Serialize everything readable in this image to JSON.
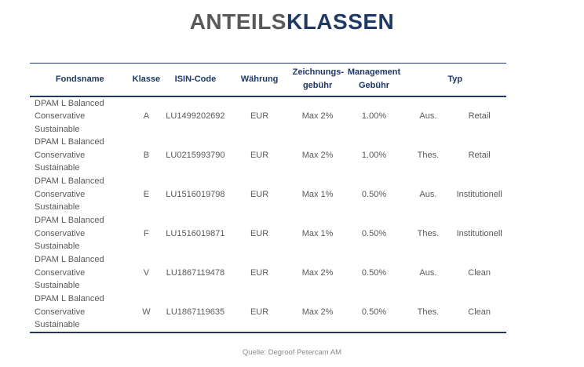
{
  "page": {
    "title_light": "ANTEILS",
    "title_bold": "KLASSEN",
    "source": "Quelle: Degroof Petercam AM"
  },
  "table": {
    "headers": {
      "fondsname": "Fondsname",
      "klasse": "Klasse",
      "isin": "ISIN-Code",
      "waehrung": "Währung",
      "zeichnung_line1": "Zeichnungs-",
      "zeichnung_line2": "gebühr",
      "management_line1": "Management",
      "management_line2": "Gebühr",
      "typ": "Typ"
    },
    "rows": [
      {
        "name1": "DPAM L Balanced",
        "name2": "Conservative Sustainable",
        "klasse": "A",
        "isin": "LU1499202692",
        "waehrung": "EUR",
        "zeichnungsgebuehr": "Max 2%",
        "management_gebuehr": "1.00%",
        "ausschuettung": "Aus.",
        "typ": "Retail"
      },
      {
        "name1": "DPAM L Balanced",
        "name2": "Conservative Sustainable",
        "klasse": "B",
        "isin": "LU0215993790",
        "waehrung": "EUR",
        "zeichnungsgebuehr": "Max 2%",
        "management_gebuehr": "1.00%",
        "ausschuettung": "Thes.",
        "typ": "Retail"
      },
      {
        "name1": "DPAM L Balanced",
        "name2": "Conservative Sustainable",
        "klasse": "E",
        "isin": "LU1516019798",
        "waehrung": "EUR",
        "zeichnungsgebuehr": "Max 1%",
        "management_gebuehr": "0.50%",
        "ausschuettung": "Aus.",
        "typ": "Institutionell"
      },
      {
        "name1": "DPAM L Balanced",
        "name2": "Conservative Sustainable",
        "klasse": "F",
        "isin": "LU1516019871",
        "waehrung": "EUR",
        "zeichnungsgebuehr": "Max 1%",
        "management_gebuehr": "0.50%",
        "ausschuettung": "Thes.",
        "typ": "Institutionell"
      },
      {
        "name1": "DPAM L Balanced",
        "name2": "Conservative Sustainable",
        "klasse": "V",
        "isin": "LU1867119478",
        "waehrung": "EUR",
        "zeichnungsgebuehr": "Max 2%",
        "management_gebuehr": "0.50%",
        "ausschuettung": "Aus.",
        "typ": "Clean"
      },
      {
        "name1": "DPAM L Balanced",
        "name2": "Conservative Sustainable",
        "klasse": "W",
        "isin": "LU1867119635",
        "waehrung": "EUR",
        "zeichnungsgebuehr": "Max 2%",
        "management_gebuehr": "0.50%",
        "ausschuettung": "Thes.",
        "typ": "Clean"
      }
    ]
  },
  "colors": {
    "navy": "#1f3864",
    "title_gray": "#595959",
    "body_text": "#595959",
    "source_gray": "#8a8a8a"
  }
}
